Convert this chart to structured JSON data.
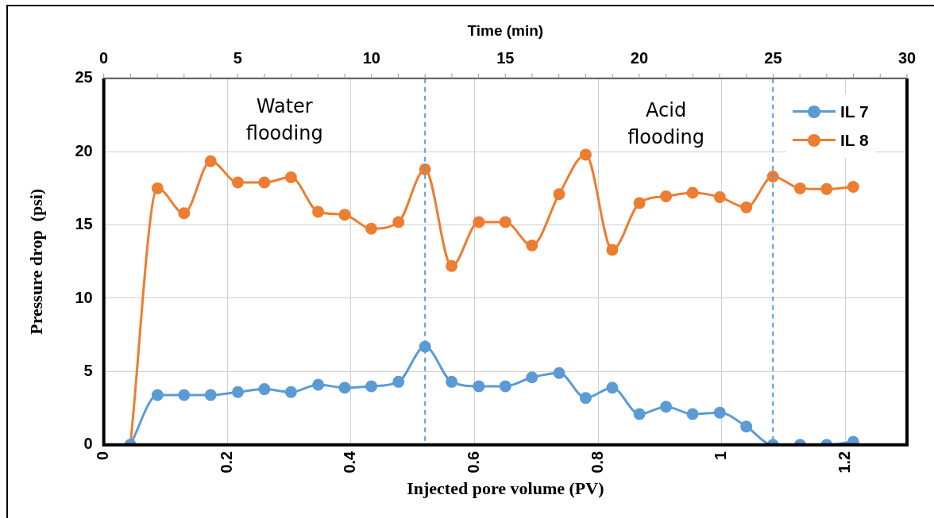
{
  "chart_data": {
    "type": "line",
    "xlabel": "Injected pore volume (PV)",
    "ylabel": "Pressure drop  (psi)",
    "x2label": "Time (min)",
    "x": [
      0.043,
      0.087,
      0.13,
      0.173,
      0.217,
      0.26,
      0.303,
      0.347,
      0.39,
      0.433,
      0.477,
      0.52,
      0.563,
      0.607,
      0.65,
      0.693,
      0.737,
      0.78,
      0.823,
      0.867,
      0.91,
      0.953,
      0.997,
      1.04,
      1.083,
      1.127,
      1.17,
      1.213
    ],
    "series": [
      {
        "name": "IL 7",
        "color": "#5b9bd5",
        "values": [
          0,
          3.4,
          3.4,
          3.4,
          3.6,
          3.8,
          3.6,
          4.1,
          3.9,
          4.0,
          4.3,
          6.7,
          4.3,
          4.0,
          4.0,
          4.6,
          4.9,
          3.2,
          3.9,
          2.1,
          2.6,
          2.1,
          2.2,
          1.25,
          0,
          0,
          0,
          0.2
        ]
      },
      {
        "name": "IL 8",
        "color": "#ed7d31",
        "values": [
          0,
          17.5,
          15.8,
          19.35,
          17.9,
          17.9,
          18.25,
          15.9,
          15.7,
          14.75,
          15.2,
          18.8,
          12.2,
          15.2,
          15.2,
          13.6,
          17.1,
          19.8,
          13.3,
          16.5,
          16.95,
          17.2,
          16.9,
          16.2,
          18.3,
          17.5,
          17.45,
          17.6
        ]
      }
    ],
    "xlim": [
      0,
      1.3
    ],
    "xticks": [
      0,
      0.2,
      0.4,
      0.6,
      0.8,
      1,
      1.2
    ],
    "x2lim": [
      0,
      30
    ],
    "x2ticks": [
      0,
      5,
      10,
      15,
      20,
      25,
      30
    ],
    "ylim": [
      0,
      25
    ],
    "yticks": [
      0,
      5,
      10,
      15,
      20,
      25
    ],
    "ref_lines": [
      {
        "axis": "x",
        "value": 0.52,
        "color": "#5b9bd5",
        "line_style": "dashed"
      },
      {
        "axis": "x",
        "value": 1.083,
        "color": "#5b9bd5",
        "line_style": "dashed"
      }
    ],
    "annotations": [
      "Water\nflooding",
      "Acid\nflooding"
    ],
    "grid": true,
    "legend": "top right",
    "marker": "circle",
    "line_style": "solid"
  }
}
